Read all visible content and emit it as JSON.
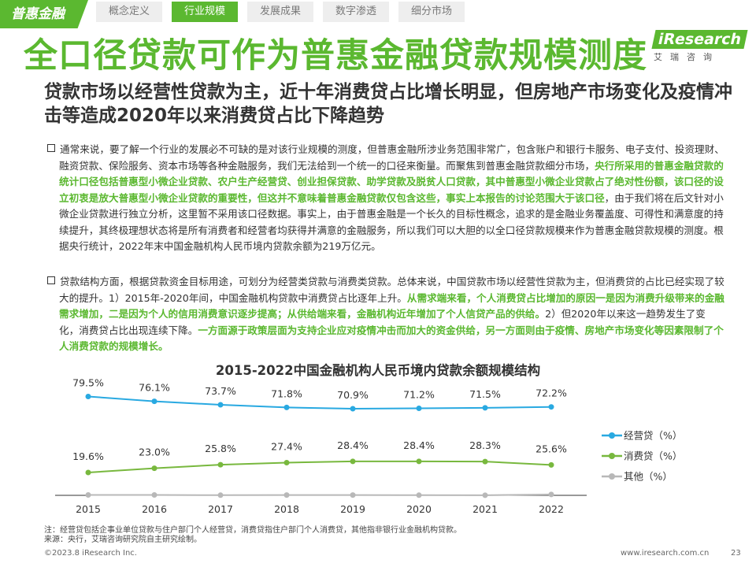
{
  "header": {
    "badge": "普惠金融",
    "tabs": [
      {
        "label": "概念定义",
        "active": false
      },
      {
        "label": "行业规模",
        "active": true
      },
      {
        "label": "发展成果",
        "active": false
      },
      {
        "label": "数字渗透",
        "active": false
      },
      {
        "label": "细分市场",
        "active": false
      }
    ],
    "title": "全口径贷款可作为普惠金融贷款规模测度",
    "logo_main": "iResearch",
    "logo_sub": "艾瑞咨询"
  },
  "subtitle": "贷款市场以经营性贷款为主，近十年消费贷占比增长明显，但房地产市场变化及疫情冲击等造成2020年以来消费贷占比下降趋势",
  "paragraphs": [
    [
      {
        "text": "通常来说，要了解一个行业的发展必不可缺的是对该行业规模的测度，但普惠金融所涉业务范围非常广，包含账户和银行卡服务、电子支付、投资理财、融资贷款、保险服务、资本市场等各种金融服务，我们无法给到一个统一的口径来衡量。而聚焦到普惠金融贷款细分市场，",
        "hl": false
      },
      {
        "text": "央行所采用的普惠金融贷款的统计口径包括普惠型小微企业贷款、农户生产经营贷、创业担保贷款、助学贷款及脱贫人口贷款，其中普惠型小微企业贷款占了绝对性份额，该口径的设立初衷是放大普惠型小微企业贷款的重要性，但这并不意味着普惠金融贷款仅包含这些，事实上本报告的讨论范围大于该口径",
        "hl": true
      },
      {
        "text": "，由于我们将在后文针对小微企业贷款进行独立分析，这里暂不采用该口径数据。事实上，由于普惠金融是一个长久的目标性概念，追求的是金融业务覆盖度、可得性和满意度的持续提升，其终极理想状态将是所有消费者和经营者均获得并满意的金融服务，所以我们可以大胆的以全口径贷款规模来作为普惠金融贷款规模的测度。根据央行统计，2022年末中国金融机构人民币境内贷款余额为219万亿元。",
        "hl": false
      }
    ],
    [
      {
        "text": "贷款结构方面，根据贷款资金目标用途，可划分为经营类贷款与消费类贷款。总体来说，中国贷款市场以经营性贷款为主，但消费贷的占比已经实现了较大的提升。1）2015年-2020年间，中国金融机构贷款中消费贷占比逐年上升。",
        "hl": false
      },
      {
        "text": "从需求端来看，个人消费贷占比增加的原因一是因为消费升级带来的金融需求增加，二是因为个人的信用消费意识逐步提高；从供给端来看，金融机构近年增加了个人信贷产品的供给。",
        "hl": true
      },
      {
        "text": "2）但2020年以来这一趋势发生了变化，消费贷占比出现连续下降。",
        "hl": false
      },
      {
        "text": "一方面源于政策层面为支持企业应对疫情冲击而加大的资金供给，另一方面则由于疫情、房地产市场变化等因素限制了个人消费贷款的规模增长。",
        "hl": true
      }
    ]
  ],
  "chart_data": {
    "type": "line",
    "title": "2015-2022中国金融机构人民币境内贷款余额规模结构",
    "x": [
      "2015",
      "2016",
      "2017",
      "2018",
      "2019",
      "2020",
      "2021",
      "2022"
    ],
    "series": [
      {
        "name": "经营贷（%）",
        "color": "#29a9e1",
        "values": [
          79.5,
          76.1,
          73.7,
          71.8,
          70.9,
          71.2,
          71.5,
          72.2
        ],
        "labels": [
          "79.5%",
          "76.1%",
          "73.7%",
          "71.8%",
          "70.9%",
          "71.2%",
          "71.5%",
          "72.2%"
        ]
      },
      {
        "name": "消费贷（%）",
        "color": "#78b83e",
        "values": [
          19.6,
          23.0,
          25.8,
          27.4,
          28.4,
          28.4,
          28.3,
          25.6
        ],
        "labels": [
          "19.6%",
          "23.0%",
          "25.8%",
          "27.4%",
          "28.4%",
          "28.4%",
          "28.3%",
          "25.6%"
        ]
      },
      {
        "name": "其他（%）",
        "color": "#b8b8b8",
        "values": [
          0.9,
          0.9,
          0.5,
          0.8,
          0.7,
          0.4,
          0.2,
          2.2
        ],
        "labels": []
      }
    ],
    "legend": "right"
  },
  "notes": [
    "注：经营贷包括企事业单位贷款与住户部门个人经营贷，消费贷指住户部门个人消费贷，其他指非银行业金融机构贷款。",
    "来源：央行，艾瑞咨询研究院自主研究绘制。"
  ],
  "footer": {
    "copyright": "©2023.8 iResearch Inc.",
    "url": "www.iresearch.com.cn",
    "page": "23"
  }
}
